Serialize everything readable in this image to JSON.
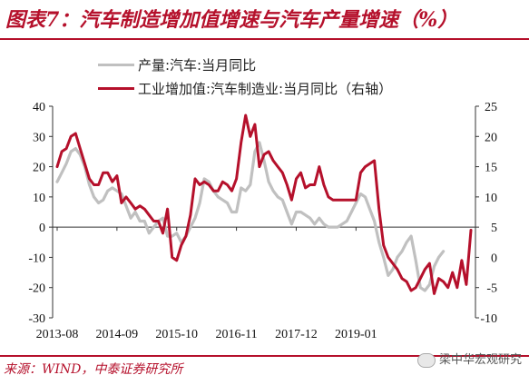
{
  "title": "图表7：汽车制造增加值增速与汽车产量增速（%）",
  "source": "来源：WIND，中泰证券研究所",
  "watermark": "梁中华宏观研究",
  "colors": {
    "accent": "#b5102b",
    "production": "#c0c0c0",
    "value_added": "#b5102b"
  },
  "chart_data": {
    "type": "line",
    "title": "汽车制造增加值增速与汽车产量增速（%）",
    "x_tick_labels": [
      "2013-08",
      "2014-09",
      "2015-10",
      "2016-11",
      "2017-12",
      "2019-01"
    ],
    "x_start": "2013-08",
    "left_axis": {
      "ylim": [
        -30,
        40
      ],
      "ticks": [
        -30,
        -20,
        -10,
        0,
        10,
        20,
        30,
        40
      ]
    },
    "right_axis": {
      "ylim": [
        -10,
        25
      ],
      "ticks": [
        -10,
        -5,
        0,
        5,
        10,
        15,
        20,
        25
      ]
    },
    "legend_position": "top-left",
    "series": [
      {
        "name": "产量:汽车:当月同比",
        "axis": "left",
        "color": "#c0c0c0",
        "values": [
          15,
          18,
          21,
          25,
          26,
          24,
          20,
          14,
          10,
          8,
          9,
          12,
          13,
          12,
          11,
          7,
          3,
          5,
          2,
          2,
          -2,
          0,
          2,
          3,
          -3,
          -3,
          -2,
          -5,
          -3,
          0,
          3,
          8,
          16,
          15,
          12,
          10,
          9,
          8,
          5,
          5,
          13,
          12,
          14,
          25,
          28,
          22,
          15,
          12,
          10,
          9,
          5,
          1,
          5,
          5,
          4,
          3,
          1,
          3,
          1,
          0,
          0,
          0,
          1,
          2,
          5,
          8,
          11,
          10,
          6,
          2,
          -5,
          -10,
          -16,
          -14,
          -10,
          -8,
          -5,
          -3,
          -11,
          -20,
          -21,
          -19,
          -13,
          -10,
          -8
        ]
      },
      {
        "name": "工业增加值:汽车制造业:当月同比（右轴）",
        "axis": "right",
        "color": "#b5102b",
        "values": [
          15,
          17.5,
          18,
          20,
          20.5,
          18,
          15.5,
          13,
          12,
          12,
          14,
          14,
          12.5,
          13.5,
          9,
          10,
          9,
          8,
          8.5,
          8,
          7,
          6,
          6,
          4,
          8,
          0,
          -0.5,
          2,
          3.5,
          7,
          13,
          12,
          12.5,
          12,
          11,
          11,
          12.5,
          12,
          11,
          13,
          19,
          23.5,
          20,
          22,
          15,
          17,
          17.5,
          16,
          15,
          14,
          12,
          9.5,
          13,
          14,
          11.5,
          12,
          12,
          15,
          12,
          10,
          9.5,
          9.5,
          9.5,
          9.5,
          9.5,
          9.5,
          14,
          15,
          15.5,
          16,
          8,
          2,
          0,
          -1,
          -2,
          -3.5,
          -4,
          -5.5,
          -5,
          -3.5,
          -2,
          -1,
          -6,
          -3.5,
          -4,
          -5,
          -2.5,
          -5,
          -0.5,
          -4.5,
          4.5
        ]
      }
    ]
  }
}
